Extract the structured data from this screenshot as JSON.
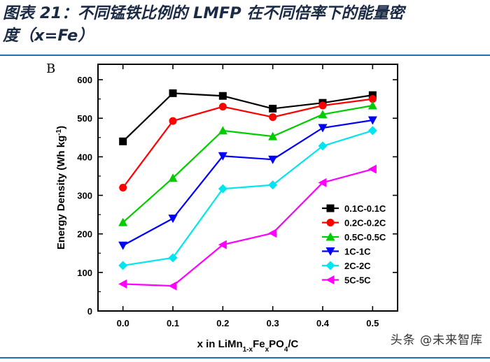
{
  "caption": {
    "line1": "图表 21：不同锰铁比例的 LMFP 在不同倍率下的能量密",
    "line2": "度（x=Fe）"
  },
  "watermark": "头条 @未来智库",
  "chart_data": {
    "type": "line",
    "panel_label": "B",
    "xlabel": "x in LiMn1-xFexPO4/C",
    "ylabel": "Energy Density (Wh kg-1)",
    "x": [
      0.0,
      0.1,
      0.2,
      0.3,
      0.4,
      0.5
    ],
    "x_tick_labels": [
      "0.0",
      "0.1",
      "0.2",
      "0.3",
      "0.4",
      "0.5"
    ],
    "y_ticks": [
      0,
      100,
      200,
      300,
      400,
      500,
      600
    ],
    "xlim": [
      -0.05,
      0.55
    ],
    "ylim": [
      0,
      640
    ],
    "legend_position": "lower-right",
    "series": [
      {
        "name": "0.1C-0.1C",
        "color": "#000000",
        "marker": "square",
        "values": [
          440,
          565,
          558,
          525,
          540,
          560
        ]
      },
      {
        "name": "0.2C-0.2C",
        "color": "#ff0000",
        "marker": "circle",
        "values": [
          320,
          493,
          530,
          503,
          533,
          550
        ]
      },
      {
        "name": "0.5C-0.5C",
        "color": "#00cc00",
        "marker": "triangle-up",
        "values": [
          230,
          345,
          468,
          453,
          510,
          533
        ]
      },
      {
        "name": "1C-1C",
        "color": "#0000ff",
        "marker": "triangle-down",
        "values": [
          170,
          240,
          402,
          393,
          475,
          495
        ]
      },
      {
        "name": "2C-2C",
        "color": "#00e5ee",
        "marker": "diamond",
        "values": [
          118,
          138,
          317,
          327,
          428,
          468
        ]
      },
      {
        "name": "5C-5C",
        "color": "#ff00ff",
        "marker": "triangle-left",
        "values": [
          70,
          65,
          172,
          202,
          333,
          368
        ]
      }
    ]
  }
}
